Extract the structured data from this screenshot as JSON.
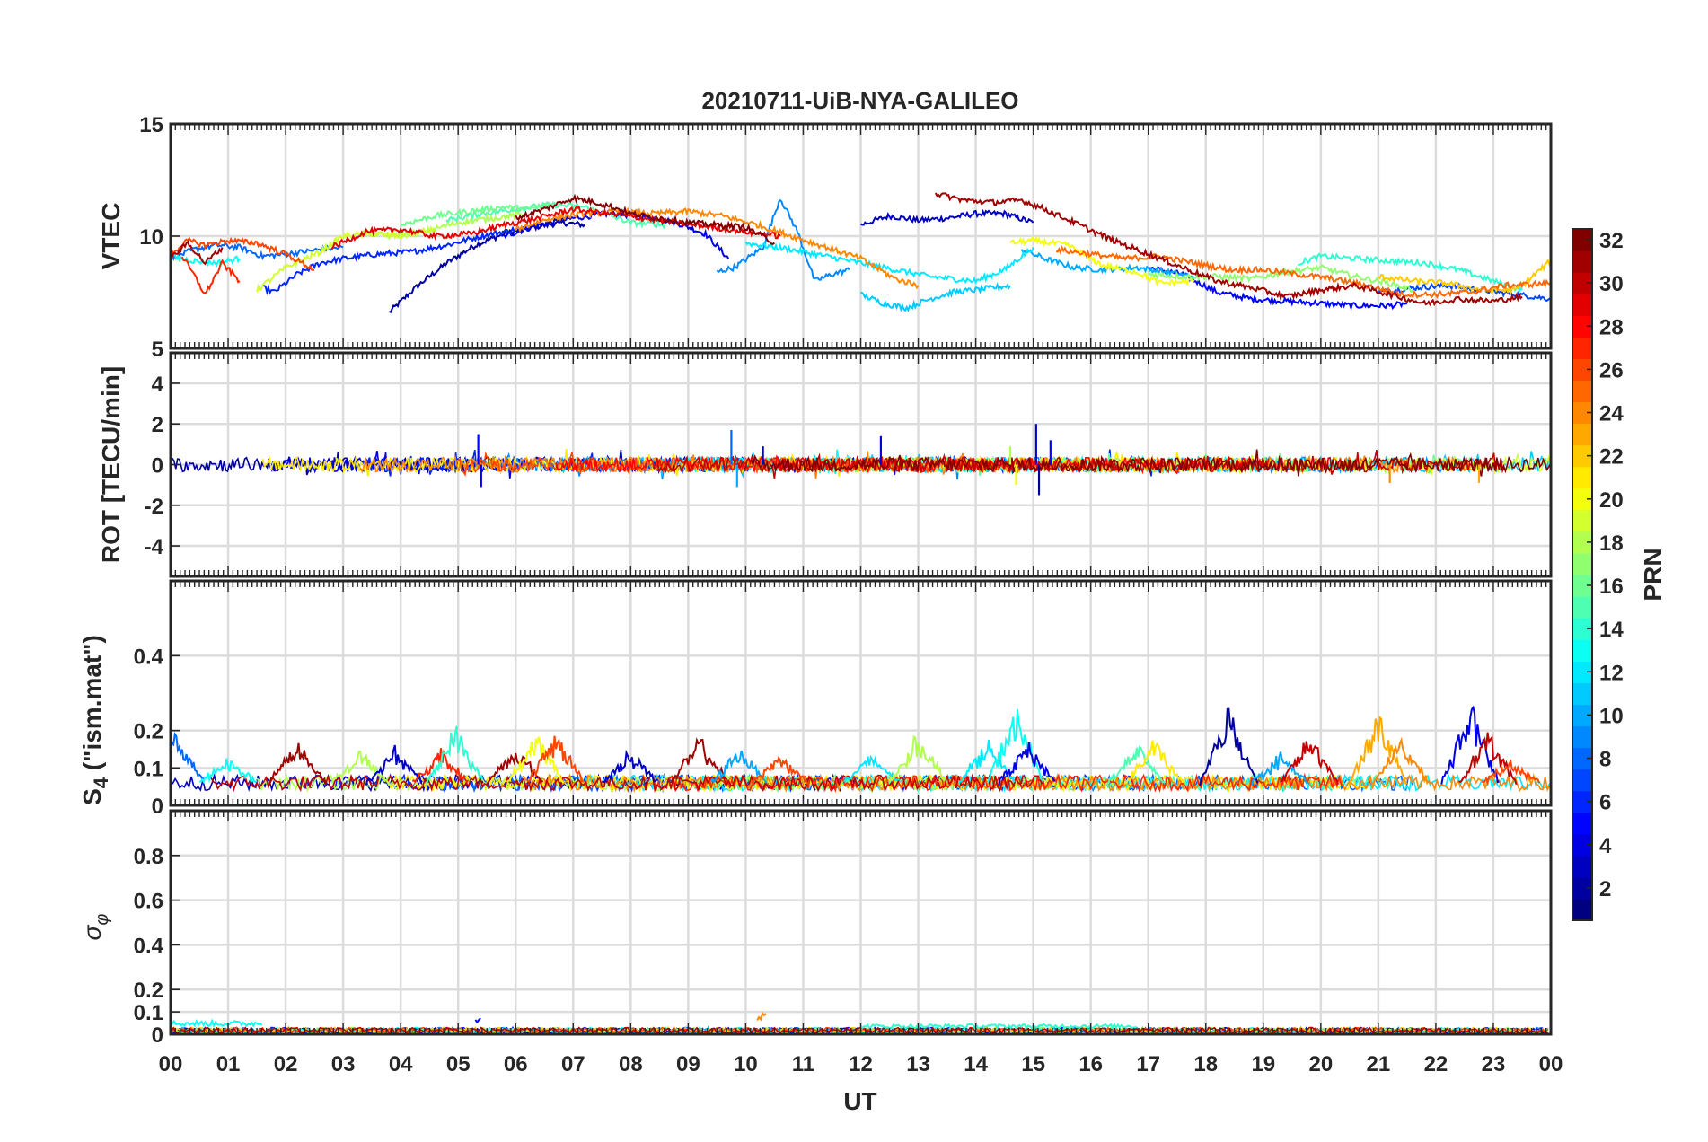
{
  "title": "20210711-UiB-NYA-GALILEO",
  "xlabel": "UT",
  "x_ticks": [
    "00",
    "01",
    "02",
    "03",
    "04",
    "05",
    "06",
    "07",
    "08",
    "09",
    "10",
    "11",
    "12",
    "13",
    "14",
    "15",
    "16",
    "17",
    "18",
    "19",
    "20",
    "21",
    "22",
    "23",
    "00"
  ],
  "colorbar": {
    "label": "PRN",
    "min": 1,
    "max": 32,
    "ticks": [
      "2",
      "4",
      "6",
      "8",
      "10",
      "12",
      "14",
      "16",
      "18",
      "20",
      "22",
      "24",
      "26",
      "28",
      "30",
      "32"
    ],
    "colormap": "jet"
  },
  "chart_data": [
    {
      "type": "line",
      "id": "vtec",
      "ylabel": "VTEC",
      "ylim": [
        5,
        15
      ],
      "y_ticks": [
        "5",
        "10",
        "15"
      ],
      "xlim": [
        0,
        24
      ],
      "grid": true,
      "series": [
        {
          "prn": 2,
          "x": [
            3.8,
            4.3,
            4.8,
            5.3,
            5.8,
            6.3,
            6.8,
            7.2
          ],
          "y": [
            6.6,
            7.8,
            8.8,
            9.6,
            10.1,
            10.4,
            10.6,
            10.5
          ]
        },
        {
          "prn": 3,
          "x": [
            12.0,
            12.5,
            13.0,
            13.5,
            14.0,
            14.5,
            15.0
          ],
          "y": [
            10.5,
            10.9,
            10.7,
            10.8,
            11.0,
            11.0,
            10.6
          ]
        },
        {
          "prn": 4,
          "x": [
            5.8,
            6.4,
            7.0,
            7.6,
            8.2,
            8.8,
            9.3,
            9.7
          ],
          "y": [
            10.0,
            10.5,
            10.8,
            11.0,
            10.9,
            10.6,
            10.1,
            9.0
          ]
        },
        {
          "prn": 5,
          "x": [
            17.0,
            17.6,
            18.2,
            18.8,
            19.4,
            20.0,
            20.6,
            21.2,
            21.5
          ],
          "y": [
            8.6,
            8.3,
            7.5,
            7.2,
            7.1,
            7.0,
            6.9,
            6.9,
            7.0
          ]
        },
        {
          "prn": 6,
          "x": [
            1.6,
            1.8,
            2.2,
            2.6,
            3.0,
            3.6,
            4.2,
            4.8,
            5.4,
            6.0
          ],
          "y": [
            7.7,
            7.5,
            8.3,
            8.8,
            9.0,
            9.2,
            9.3,
            9.6,
            10.0,
            10.3
          ]
        },
        {
          "prn": 7,
          "x": [
            21.0,
            21.6,
            22.2,
            22.8,
            23.4,
            24.0
          ],
          "y": [
            7.5,
            7.7,
            7.8,
            7.6,
            7.4,
            7.2
          ]
        },
        {
          "prn": 8,
          "x": [
            0.0,
            0.4,
            0.8,
            1.2,
            1.6,
            2.0,
            2.6,
            3.0
          ],
          "y": [
            9.0,
            9.4,
            9.6,
            9.5,
            9.1,
            9.2,
            9.4,
            9.5
          ]
        },
        {
          "prn": 9,
          "x": [
            9.5,
            9.8,
            10.3,
            10.6,
            10.9,
            11.2,
            11.5,
            11.8
          ],
          "y": [
            8.4,
            8.6,
            9.5,
            11.7,
            10.2,
            8.0,
            8.3,
            8.5
          ]
        },
        {
          "prn": 10,
          "x": [
            14.8,
            15.2,
            15.7,
            16.2,
            16.8,
            17.3,
            17.8
          ],
          "y": [
            9.4,
            9.0,
            8.6,
            8.5,
            8.6,
            8.4,
            8.2
          ]
        },
        {
          "prn": 11,
          "x": [
            12.0,
            12.4,
            12.8,
            13.2,
            13.6,
            14.0,
            14.6
          ],
          "y": [
            7.4,
            7.0,
            6.8,
            7.2,
            7.5,
            7.6,
            7.8
          ]
        },
        {
          "prn": 12,
          "x": [
            10.0,
            10.8,
            11.6,
            12.4,
            13.2,
            14.0,
            14.5,
            15.0
          ],
          "y": [
            9.7,
            9.4,
            9.0,
            8.6,
            8.2,
            8.0,
            8.5,
            9.5
          ]
        },
        {
          "prn": 13,
          "x": [
            0.0,
            0.4,
            0.8,
            1.2
          ],
          "y": [
            9.1,
            8.9,
            8.8,
            9.0
          ]
        },
        {
          "prn": 14,
          "x": [
            19.6,
            20.0,
            20.6,
            21.2,
            21.8,
            22.4,
            23.0,
            23.5
          ],
          "y": [
            8.8,
            9.1,
            9.0,
            8.9,
            8.8,
            8.5,
            8.0,
            7.6
          ]
        },
        {
          "prn": 15,
          "x": [
            4.8,
            5.4,
            6.0,
            6.6,
            7.2,
            8.0,
            8.6
          ],
          "y": [
            10.7,
            11.0,
            11.2,
            11.4,
            11.3,
            10.6,
            10.5
          ]
        },
        {
          "prn": 16,
          "x": [
            4.0,
            4.6,
            5.2,
            5.8,
            6.2,
            6.6
          ],
          "y": [
            10.5,
            10.9,
            11.1,
            11.3,
            11.2,
            11.4
          ]
        },
        {
          "prn": 17,
          "x": [
            17.0,
            17.6,
            18.2,
            18.8,
            19.4,
            20.0,
            20.6,
            21.2,
            21.6
          ],
          "y": [
            8.3,
            8.2,
            8.2,
            8.1,
            8.4,
            8.6,
            8.2,
            7.9,
            7.6
          ]
        },
        {
          "prn": 18,
          "x": [
            3.3,
            3.8,
            4.4,
            5.0,
            5.6,
            6.2
          ],
          "y": [
            10.2,
            10.0,
            10.2,
            10.6,
            10.8,
            11.0
          ]
        },
        {
          "prn": 19,
          "x": [
            1.5,
            2.0,
            2.6,
            3.0,
            3.5,
            4.0,
            4.6
          ],
          "y": [
            7.6,
            8.6,
            9.3,
            10.0,
            10.1,
            10.0,
            10.3
          ]
        },
        {
          "prn": 20,
          "x": [
            14.6,
            15.0,
            15.6,
            16.2,
            16.8,
            17.2,
            17.8
          ],
          "y": [
            9.7,
            9.8,
            9.6,
            8.7,
            8.4,
            7.9,
            8.0
          ]
        },
        {
          "prn": 22,
          "x": [
            21.0,
            21.6,
            22.2,
            22.8,
            23.4,
            24.0
          ],
          "y": [
            8.2,
            8.0,
            7.9,
            7.6,
            7.6,
            8.9
          ]
        },
        {
          "prn": 24,
          "x": [
            6.0,
            6.6,
            7.2,
            7.8,
            8.4,
            9.0,
            9.6,
            10.2,
            10.8,
            11.4,
            12.0,
            12.6,
            13.0
          ],
          "y": [
            10.3,
            10.8,
            11.0,
            11.1,
            11.0,
            11.1,
            10.9,
            10.5,
            10.0,
            9.5,
            9.0,
            8.1,
            7.8
          ]
        },
        {
          "prn": 25,
          "x": [
            15.4,
            16.0,
            16.6,
            17.2,
            17.8,
            18.4,
            19.0,
            19.6,
            20.2,
            20.8,
            21.4,
            22.0,
            22.6,
            23.2,
            24.0
          ],
          "y": [
            9.4,
            9.2,
            9.0,
            9.1,
            8.8,
            8.5,
            8.5,
            8.3,
            8.1,
            7.8,
            7.4,
            7.4,
            7.5,
            7.8,
            7.9
          ]
        },
        {
          "prn": 26,
          "x": [
            0.0,
            0.3,
            0.6,
            1.0,
            1.5,
            2.0,
            2.5
          ],
          "y": [
            9.2,
            9.8,
            9.6,
            9.8,
            9.7,
            9.2,
            8.5
          ]
        },
        {
          "prn": 27,
          "x": [
            0.2,
            0.4,
            0.6,
            0.9,
            1.2
          ],
          "y": [
            9.1,
            8.3,
            7.4,
            8.8,
            8.0
          ]
        },
        {
          "prn": 29,
          "x": [
            2.8,
            3.4,
            4.0,
            4.6,
            5.2,
            5.8,
            6.4,
            7.0,
            7.6,
            8.2,
            8.8,
            9.4,
            10.0,
            10.6
          ],
          "y": [
            9.5,
            10.2,
            10.3,
            10.0,
            10.1,
            10.5,
            10.8,
            11.2,
            11.0,
            10.8,
            10.6,
            10.4,
            10.2,
            10.0
          ]
        },
        {
          "prn": 31,
          "x": [
            0.0,
            0.3,
            0.6,
            0.9
          ],
          "y": [
            9.0,
            9.7,
            8.8,
            9.5
          ]
        },
        {
          "prn": 32,
          "x": [
            6.0,
            6.5,
            7.0,
            7.4,
            7.8,
            8.0,
            8.5,
            9.0,
            9.5,
            10.0,
            10.5
          ],
          "y": [
            10.8,
            11.2,
            11.7,
            11.5,
            11.2,
            11.0,
            10.8,
            10.6,
            10.5,
            10.4,
            9.7
          ]
        },
        {
          "prn": 31,
          "x": [
            13.3,
            13.8,
            14.3,
            14.8,
            15.2,
            15.8,
            16.4,
            17.0,
            17.6,
            18.2,
            18.8,
            19.4,
            20.0,
            20.6,
            21.2,
            21.8,
            22.4,
            23.0,
            23.5
          ],
          "y": [
            11.9,
            11.6,
            11.5,
            11.6,
            11.2,
            10.5,
            9.8,
            9.2,
            8.6,
            8.0,
            7.7,
            7.3,
            7.6,
            7.8,
            7.4,
            7.0,
            7.2,
            7.1,
            7.3
          ]
        }
      ]
    },
    {
      "type": "line",
      "id": "rot",
      "ylabel": "ROT [TECU/min]",
      "ylim": [
        -5.5,
        5.5
      ],
      "y_ticks": [
        "-4",
        "-2",
        "0",
        "2",
        "4"
      ],
      "xlim": [
        0,
        24
      ],
      "grid": true,
      "noise_band": [
        -0.3,
        0.35
      ],
      "spikes": [
        {
          "x": 5.35,
          "y": 1.5,
          "prn": 5
        },
        {
          "x": 5.4,
          "y": -1.1,
          "prn": 4
        },
        {
          "x": 9.75,
          "y": 1.7,
          "prn": 8
        },
        {
          "x": 9.85,
          "y": -1.1,
          "prn": 10
        },
        {
          "x": 10.3,
          "y": 0.9,
          "prn": 3
        },
        {
          "x": 12.35,
          "y": 1.4,
          "prn": 4
        },
        {
          "x": 14.6,
          "y": 0.9,
          "prn": 18
        },
        {
          "x": 14.7,
          "y": -1.0,
          "prn": 20
        },
        {
          "x": 15.05,
          "y": 2.0,
          "prn": 3
        },
        {
          "x": 15.1,
          "y": -1.5,
          "prn": 2
        },
        {
          "x": 15.3,
          "y": 1.2,
          "prn": 5
        },
        {
          "x": 21.2,
          "y": -0.9,
          "prn": 24
        },
        {
          "x": 22.75,
          "y": -0.9,
          "prn": 23
        }
      ]
    },
    {
      "type": "line",
      "id": "s4",
      "ylabel": "S4 (\"ism.mat\")",
      "ylim": [
        0,
        0.6
      ],
      "y_ticks": [
        "0",
        "0.1",
        "0.2",
        "0.4"
      ],
      "xlim": [
        0,
        24
      ],
      "grid": true,
      "baseline": [
        0.04,
        0.08
      ],
      "events": [
        {
          "x": 0.1,
          "peak": 0.2,
          "prn": 8
        },
        {
          "x": 1.0,
          "peak": 0.13,
          "prn": 13
        },
        {
          "x": 2.2,
          "peak": 0.18,
          "prn": 31
        },
        {
          "x": 3.3,
          "peak": 0.15,
          "prn": 18
        },
        {
          "x": 3.9,
          "peak": 0.16,
          "prn": 3
        },
        {
          "x": 4.7,
          "peak": 0.15,
          "prn": 27
        },
        {
          "x": 4.95,
          "peak": 0.22,
          "prn": 14
        },
        {
          "x": 6.0,
          "peak": 0.16,
          "prn": 31
        },
        {
          "x": 6.35,
          "peak": 0.2,
          "prn": 20
        },
        {
          "x": 6.7,
          "peak": 0.2,
          "prn": 26
        },
        {
          "x": 8.0,
          "peak": 0.15,
          "prn": 3
        },
        {
          "x": 9.2,
          "peak": 0.19,
          "prn": 31
        },
        {
          "x": 9.9,
          "peak": 0.16,
          "prn": 10
        },
        {
          "x": 10.6,
          "peak": 0.14,
          "prn": 26
        },
        {
          "x": 12.2,
          "peak": 0.14,
          "prn": 12
        },
        {
          "x": 13.0,
          "peak": 0.2,
          "prn": 18
        },
        {
          "x": 14.2,
          "peak": 0.18,
          "prn": 12
        },
        {
          "x": 14.7,
          "peak": 0.27,
          "prn": 13
        },
        {
          "x": 14.9,
          "peak": 0.17,
          "prn": 4
        },
        {
          "x": 16.8,
          "peak": 0.17,
          "prn": 15
        },
        {
          "x": 17.1,
          "peak": 0.18,
          "prn": 21
        },
        {
          "x": 18.4,
          "peak": 0.27,
          "prn": 2
        },
        {
          "x": 19.3,
          "peak": 0.14,
          "prn": 10
        },
        {
          "x": 19.8,
          "peak": 0.19,
          "prn": 30
        },
        {
          "x": 21.0,
          "peak": 0.26,
          "prn": 23
        },
        {
          "x": 21.4,
          "peak": 0.18,
          "prn": 24
        },
        {
          "x": 22.6,
          "peak": 0.28,
          "prn": 4
        },
        {
          "x": 22.9,
          "peak": 0.2,
          "prn": 30
        },
        {
          "x": 23.3,
          "peak": 0.12,
          "prn": 26
        }
      ]
    },
    {
      "type": "line",
      "id": "sigma_phi",
      "ylabel": "σφ",
      "ylim": [
        0,
        1
      ],
      "y_ticks": [
        "0",
        "0.1",
        "0.2",
        "0.4",
        "0.6",
        "0.8"
      ],
      "xlim": [
        0,
        24
      ],
      "grid": true,
      "baseline": [
        0.005,
        0.03
      ],
      "bumps": [
        {
          "x0": 0.0,
          "x1": 1.6,
          "y": 0.06,
          "prn": 13
        },
        {
          "x0": 5.3,
          "x1": 5.4,
          "y": 0.09,
          "prn": 5
        },
        {
          "x0": 10.2,
          "x1": 10.35,
          "y": 0.1,
          "prn": 24
        },
        {
          "x0": 12.0,
          "x1": 16.8,
          "y": 0.045,
          "prn": 14
        }
      ]
    }
  ]
}
